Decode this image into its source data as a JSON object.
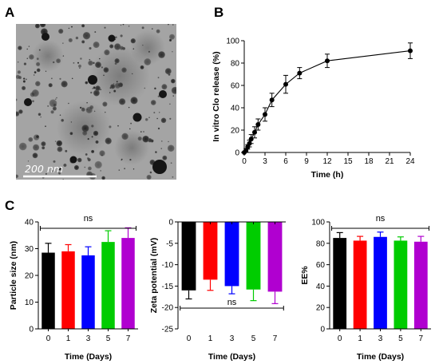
{
  "panel_labels": {
    "a": "A",
    "b": "B",
    "c": "C"
  },
  "micrograph": {
    "scale_bar_text": "200 nm"
  },
  "colors": {
    "day0": "#000000",
    "day1": "#ff0000",
    "day3": "#0000ff",
    "day5": "#00cc00",
    "day7": "#b000d0"
  },
  "chart_data": [
    {
      "panel": "B",
      "type": "line",
      "xlabel": "Time (h)",
      "ylabel": "In vitro Clo release (%)",
      "xlim": [
        0,
        24
      ],
      "ylim": [
        0,
        100
      ],
      "xticks": [
        0,
        3,
        6,
        9,
        12,
        15,
        18,
        21,
        24
      ],
      "yticks": [
        0,
        20,
        40,
        60,
        80,
        100
      ],
      "x": [
        0,
        0.25,
        0.5,
        0.75,
        1,
        1.5,
        2,
        3,
        4,
        6,
        8,
        12,
        24
      ],
      "y": [
        0,
        2,
        5,
        8,
        12,
        18,
        25,
        34,
        47,
        61,
        71,
        82,
        91
      ],
      "err": [
        0.5,
        1.5,
        2,
        3,
        4,
        5,
        5,
        6,
        6,
        8,
        5,
        6,
        7
      ],
      "grid": false
    },
    {
      "panel": "C1",
      "type": "bar",
      "xlabel": "Time (Days)",
      "ylabel": "Particle size (nm)",
      "categories": [
        "0",
        "1",
        "3",
        "5",
        "7"
      ],
      "values": [
        28.5,
        29,
        27.5,
        32.5,
        34
      ],
      "err": [
        3.5,
        2.5,
        3.2,
        4.2,
        3.8
      ],
      "ylim": [
        0,
        40
      ],
      "yticks": [
        0,
        10,
        20,
        30,
        40
      ],
      "annotation": "ns"
    },
    {
      "panel": "C2",
      "type": "bar",
      "xlabel": "Time (Days)",
      "ylabel": "Zeta potential (mV)",
      "categories": [
        "0",
        "1",
        "3",
        "5",
        "7"
      ],
      "values": [
        -16,
        -13.5,
        -15,
        -15.8,
        -16.3
      ],
      "err": [
        2,
        2.5,
        1.8,
        2.6,
        2.8
      ],
      "ylim": [
        -25,
        0
      ],
      "yticks": [
        0,
        -5,
        -10,
        -15,
        -20,
        -25
      ],
      "annotation": "ns"
    },
    {
      "panel": "C3",
      "type": "bar",
      "xlabel": "Time (Days)",
      "ylabel": "EE%",
      "categories": [
        "0",
        "1",
        "3",
        "5",
        "7"
      ],
      "values": [
        85,
        82.5,
        86,
        82.5,
        81.5
      ],
      "err": [
        5,
        4,
        4.5,
        3.5,
        5
      ],
      "ylim": [
        0,
        100
      ],
      "yticks": [
        0,
        20,
        40,
        60,
        80,
        100
      ],
      "annotation": "ns"
    }
  ]
}
